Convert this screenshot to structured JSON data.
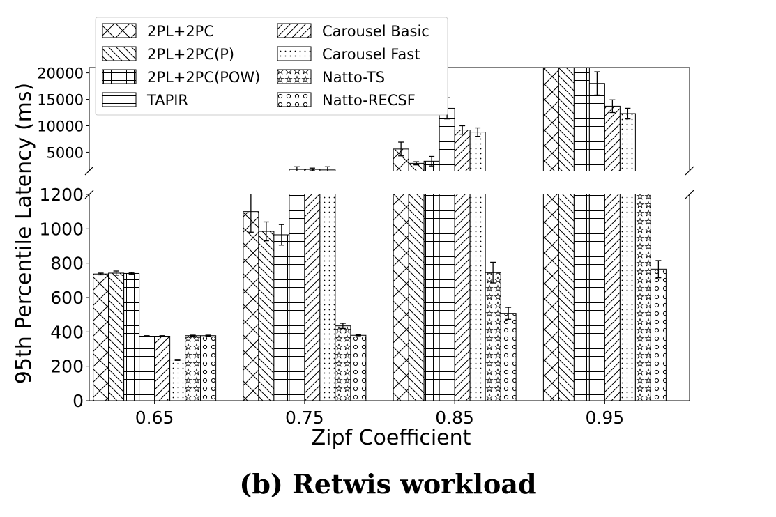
{
  "caption": "(b) Retwis workload",
  "chart_data": {
    "type": "bar",
    "xlabel": "Zipf Coefficient",
    "ylabel": "95th Percentile Latency (ms)",
    "categories": [
      "0.65",
      "0.75",
      "0.85",
      "0.95"
    ],
    "broken_axis": {
      "lower": {
        "ylim": [
          0,
          1200
        ],
        "ticks": [
          "0",
          "200",
          "400",
          "600",
          "800",
          "1000",
          "1200"
        ]
      },
      "upper": {
        "ylim": [
          1500,
          21000
        ],
        "ticks": [
          "5000",
          "10000",
          "15000",
          "20000"
        ]
      }
    },
    "legend_position": "top-left, two columns",
    "grid": false,
    "series": [
      {
        "name": "2PL+2PC",
        "pattern": "crosshatch",
        "values": [
          737,
          1100,
          5600,
          22000
        ],
        "errors": [
          5,
          120,
          1300,
          0
        ]
      },
      {
        "name": "2PL+2PC(P)",
        "pattern": "backslash",
        "values": [
          742,
          985,
          2900,
          22000
        ],
        "errors": [
          12,
          55,
          300,
          0
        ]
      },
      {
        "name": "2PL+2PC(POW)",
        "pattern": "plus",
        "values": [
          740,
          965,
          3300,
          22000
        ],
        "errors": [
          5,
          60,
          900,
          0
        ]
      },
      {
        "name": "TAPIR",
        "pattern": "horizontal",
        "values": [
          375,
          1750,
          13300,
          18000
        ],
        "errors": [
          3,
          500,
          2000,
          2200
        ]
      },
      {
        "name": "Carousel Basic",
        "pattern": "slash",
        "values": [
          375,
          1750,
          9200,
          13700
        ],
        "errors": [
          3,
          250,
          800,
          1200
        ]
      },
      {
        "name": "Carousel Fast",
        "pattern": "dots",
        "values": [
          237,
          1650,
          8800,
          12300
        ],
        "errors": [
          3,
          600,
          800,
          1000
        ]
      },
      {
        "name": "Natto-TS",
        "pattern": "stars",
        "values": [
          378,
          435,
          745,
          1350
        ],
        "errors": [
          3,
          15,
          60,
          200
        ]
      },
      {
        "name": "Natto-RECSF",
        "pattern": "circles",
        "values": [
          378,
          380,
          508,
          765
        ],
        "errors": [
          3,
          3,
          35,
          50
        ]
      }
    ]
  }
}
